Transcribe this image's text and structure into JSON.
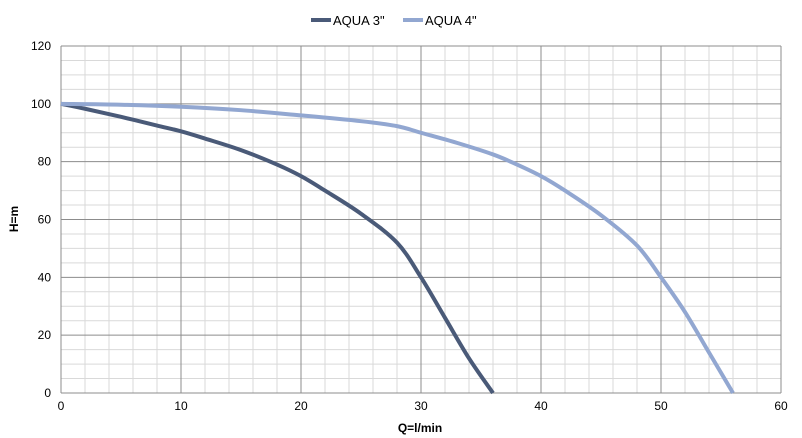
{
  "chart_data": {
    "type": "line",
    "title": "",
    "xlabel": "Q=l/min",
    "ylabel": "H=m",
    "xlim": [
      0,
      60
    ],
    "ylim": [
      0,
      120
    ],
    "x_ticks": [
      "0",
      "10",
      "20",
      "30",
      "40",
      "50",
      "60"
    ],
    "y_ticks": [
      "0",
      "20",
      "40",
      "60",
      "80",
      "100",
      "120"
    ],
    "grid": true,
    "legend_position": "top-center",
    "series": [
      {
        "name": "AQUA 3\"",
        "color": "#4a5a78",
        "points": [
          [
            0,
            100
          ],
          [
            2,
            98.3
          ],
          [
            5,
            95.5
          ],
          [
            8,
            92.5
          ],
          [
            10,
            90.5
          ],
          [
            12,
            88
          ],
          [
            15,
            84
          ],
          [
            18,
            79
          ],
          [
            20,
            75
          ],
          [
            22,
            70
          ],
          [
            25,
            62
          ],
          [
            28,
            52
          ],
          [
            30,
            40
          ],
          [
            32,
            26
          ],
          [
            34,
            12
          ],
          [
            36,
            0
          ]
        ]
      },
      {
        "name": "AQUA 4\"",
        "color": "#92a7d1",
        "points": [
          [
            0,
            100
          ],
          [
            5,
            99.7
          ],
          [
            10,
            99
          ],
          [
            15,
            97.8
          ],
          [
            20,
            96
          ],
          [
            25,
            94
          ],
          [
            28,
            92.3
          ],
          [
            30,
            90
          ],
          [
            33,
            86.5
          ],
          [
            36,
            82.5
          ],
          [
            38,
            79
          ],
          [
            40,
            75
          ],
          [
            42,
            70
          ],
          [
            45,
            61.5
          ],
          [
            48,
            51
          ],
          [
            50,
            40
          ],
          [
            52,
            28
          ],
          [
            54,
            14
          ],
          [
            56,
            0
          ]
        ]
      }
    ]
  }
}
